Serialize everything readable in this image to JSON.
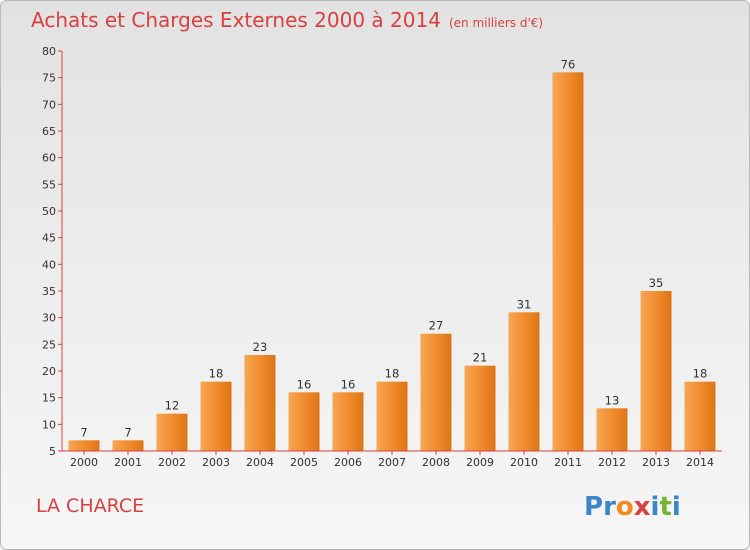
{
  "header": {
    "title": "Achats et Charges Externes 2000 à 2014",
    "unit": "(en milliers d'€)"
  },
  "footer": {
    "location": "LA CHARCE",
    "logo_letters": [
      "P",
      "r",
      "o",
      "x",
      "i",
      "t",
      "i"
    ],
    "logo_colors": [
      "#3a86c8",
      "#3a86c8",
      "#f28a1e",
      "#d9403f",
      "#3a86c8",
      "#79b431",
      "#3a86c8"
    ]
  },
  "chart_data": {
    "type": "bar",
    "title": "Achats et Charges Externes 2000 à 2014",
    "subtitle": "(en milliers d'€)",
    "categories": [
      "2000",
      "2001",
      "2002",
      "2003",
      "2004",
      "2005",
      "2006",
      "2007",
      "2008",
      "2009",
      "2010",
      "2011",
      "2012",
      "2013",
      "2014"
    ],
    "values": [
      7,
      7,
      12,
      18,
      23,
      16,
      16,
      18,
      27,
      21,
      31,
      76,
      13,
      35,
      18
    ],
    "ylim": [
      5,
      80
    ],
    "yticks": [
      5,
      10,
      15,
      20,
      25,
      30,
      35,
      40,
      45,
      50,
      55,
      60,
      65,
      70,
      75,
      80
    ],
    "grid": false,
    "bar_color": "#f08a2c",
    "axis_color": "#d9403f"
  }
}
